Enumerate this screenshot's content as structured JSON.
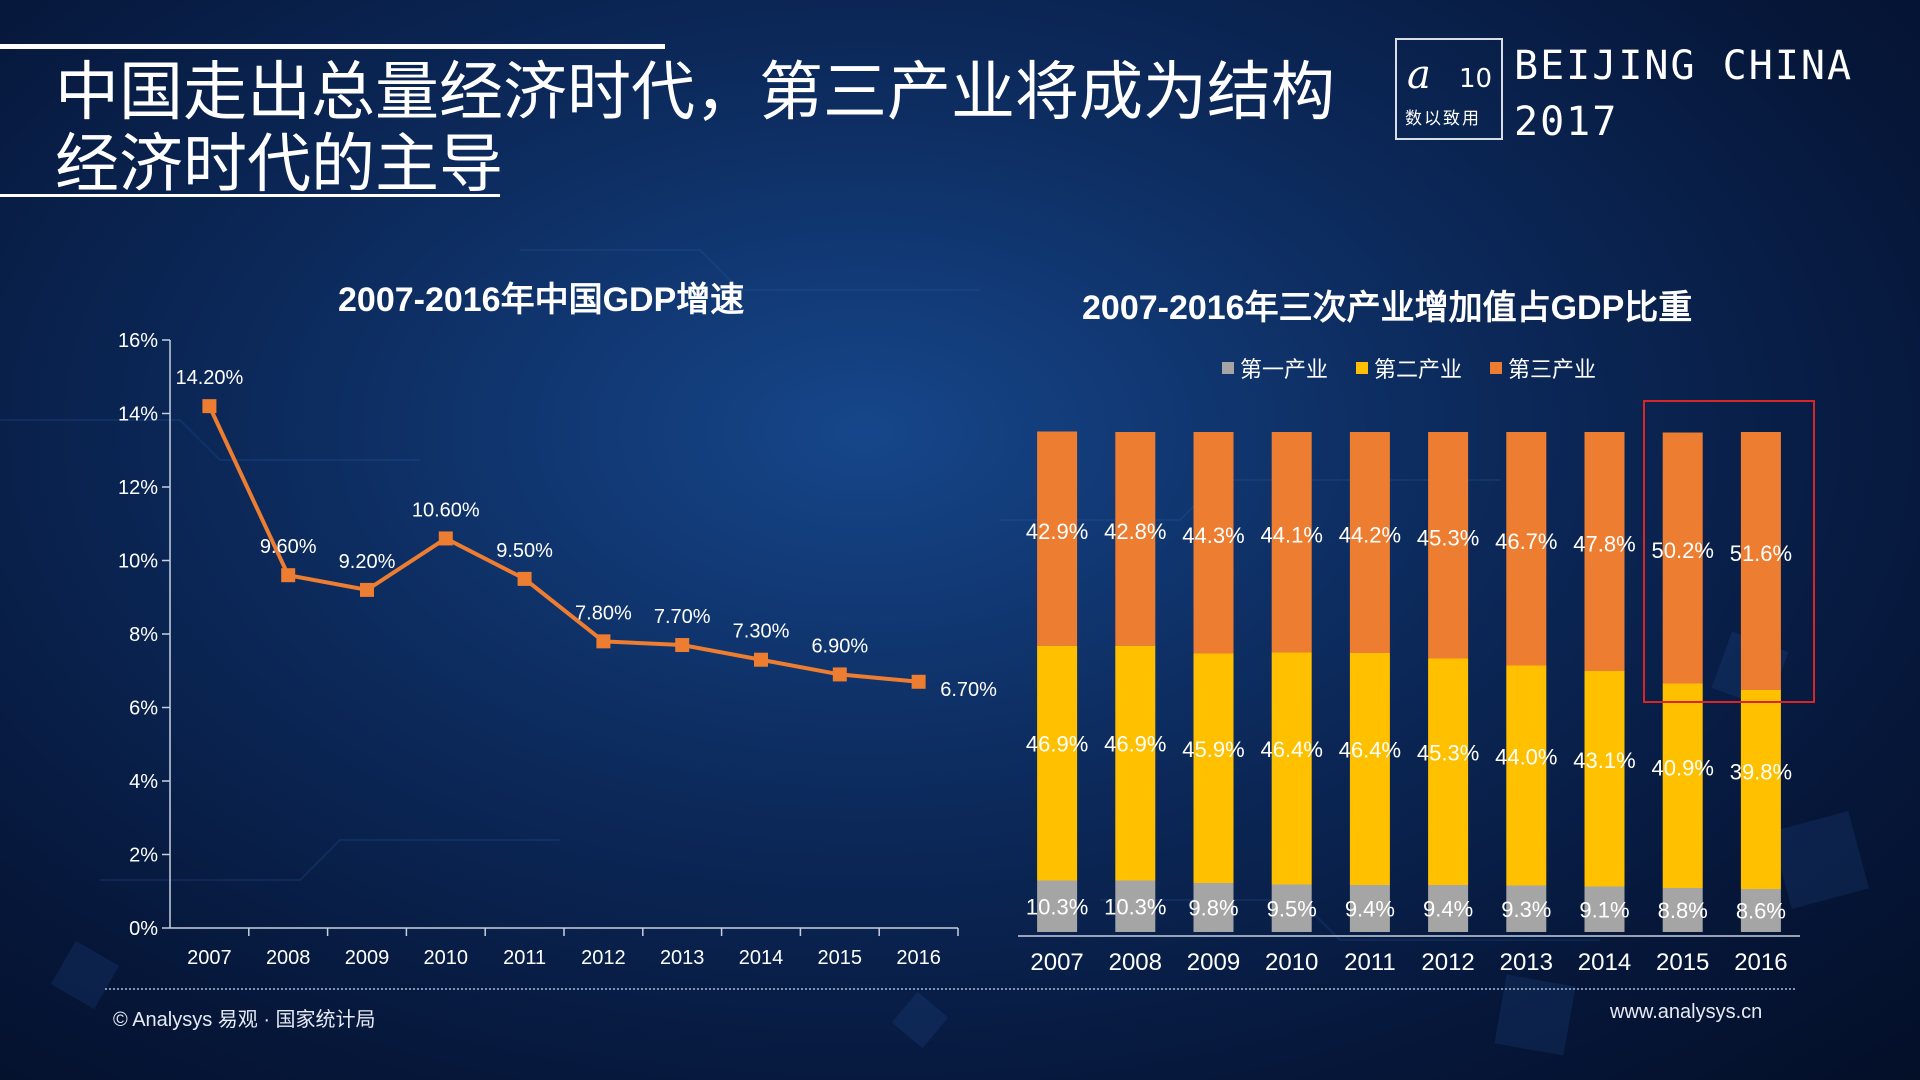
{
  "header": {
    "title_line1": "中国走出总量经济时代，第三产业将成为结构",
    "title_line2": "经济时代的主导",
    "logo_mark": "a",
    "logo_number": "10",
    "logo_text": "数以致用",
    "event_line1": "BEIJING CHINA",
    "event_line2": "2017"
  },
  "footer": {
    "source": "© Analysys 易观 · 国家统计局",
    "website": "www.analysys.cn"
  },
  "chart_data": [
    {
      "type": "line",
      "title": "2007-2016年中国GDP增速",
      "x": [
        "2007",
        "2008",
        "2009",
        "2010",
        "2011",
        "2012",
        "2013",
        "2014",
        "2015",
        "2016"
      ],
      "values": [
        14.2,
        9.6,
        9.2,
        10.6,
        9.5,
        7.8,
        7.7,
        7.3,
        6.9,
        6.7
      ],
      "data_labels": [
        "14.20%",
        "9.60%",
        "9.20%",
        "10.60%",
        "9.50%",
        "7.80%",
        "7.70%",
        "7.30%",
        "6.90%",
        "6.70%"
      ],
      "y_ticks": [
        "0%",
        "2%",
        "4%",
        "6%",
        "8%",
        "10%",
        "12%",
        "14%",
        "16%"
      ],
      "ylim": [
        0,
        16
      ],
      "color": "#ed7d31",
      "grid": false
    },
    {
      "type": "bar",
      "stacked": true,
      "title": "2007-2016年三次产业增加值占GDP比重",
      "categories": [
        "2007",
        "2008",
        "2009",
        "2010",
        "2011",
        "2012",
        "2013",
        "2014",
        "2015",
        "2016"
      ],
      "series": [
        {
          "name": "第一产业",
          "color": "#a5a5a5",
          "values": [
            10.3,
            10.3,
            9.8,
            9.5,
            9.4,
            9.4,
            9.3,
            9.1,
            8.8,
            8.6
          ],
          "labels": [
            "10.3%",
            "10.3%",
            "9.8%",
            "9.5%",
            "9.4%",
            "9.4%",
            "9.3%",
            "9.1%",
            "8.8%",
            "8.6%"
          ]
        },
        {
          "name": "第二产业",
          "color": "#ffc000",
          "values": [
            46.9,
            46.9,
            45.9,
            46.4,
            46.4,
            45.3,
            44.0,
            43.1,
            40.9,
            39.8
          ],
          "labels": [
            "46.9%",
            "46.9%",
            "45.9%",
            "46.4%",
            "46.4%",
            "45.3%",
            "44.0%",
            "43.1%",
            "40.9%",
            "39.8%"
          ]
        },
        {
          "name": "第三产业",
          "color": "#ed7d31",
          "values": [
            42.9,
            42.8,
            44.3,
            44.1,
            44.2,
            45.3,
            46.7,
            47.8,
            50.2,
            51.6
          ],
          "labels": [
            "42.9%",
            "42.8%",
            "44.3%",
            "44.1%",
            "44.2%",
            "45.3%",
            "46.7%",
            "47.8%",
            "50.2%",
            "51.6%"
          ]
        }
      ],
      "legend_position": "top",
      "highlighted_categories": [
        "2015",
        "2016"
      ],
      "highlight_color": "#d92525"
    }
  ]
}
